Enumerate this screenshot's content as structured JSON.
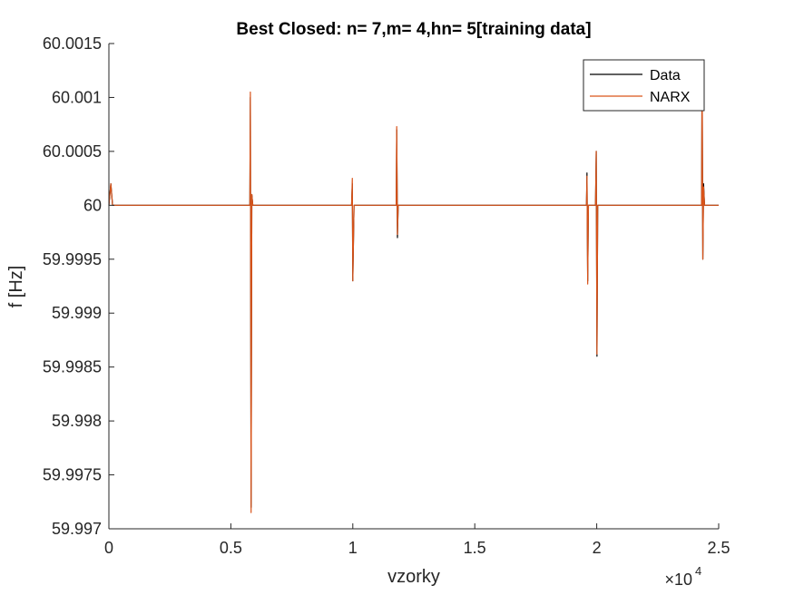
{
  "chart_data": {
    "type": "line",
    "title": "Best Closed: n= 7,m= 4,hn= 5[training data]",
    "xlabel": "vzorky",
    "ylabel": "f [Hz]",
    "xlim": [
      0,
      25000
    ],
    "ylim": [
      59.997,
      60.0015
    ],
    "x_exponent_label": "×10",
    "x_exponent_power": "4",
    "x_ticks": [
      0,
      5000,
      10000,
      15000,
      20000,
      25000
    ],
    "x_tick_labels": [
      "0",
      "0.5",
      "1",
      "1.5",
      "2",
      "2.5"
    ],
    "y_ticks": [
      59.997,
      59.9975,
      59.998,
      59.9985,
      59.999,
      59.9995,
      60,
      60.0005,
      60.001,
      60.0015
    ],
    "y_tick_labels": [
      "59.997",
      "59.9975",
      "59.998",
      "59.9985",
      "59.999",
      "59.9995",
      "60",
      "60.0005",
      "60.001",
      "60.0015"
    ],
    "legend": {
      "location": "top-right",
      "entries": [
        "Data",
        "NARX"
      ]
    },
    "series": [
      {
        "name": "Data",
        "color": "#000000",
        "x": [
          0,
          80,
          150,
          5780,
          5800,
          5830,
          5860,
          5900,
          6100,
          9950,
          9980,
          10000,
          10050,
          11780,
          11800,
          11830,
          11860,
          19580,
          19600,
          19630,
          19660,
          19950,
          19980,
          20010,
          20040,
          20300,
          24300,
          24320,
          24350,
          24380,
          24420,
          25000
        ],
        "y": [
          60,
          60.0002,
          60,
          60,
          60.001,
          59.9972,
          60.0001,
          60,
          60,
          60,
          60.0002,
          59.9993,
          60,
          60,
          60.0007,
          59.9997,
          60,
          60,
          60.0003,
          59.9993,
          60,
          60,
          60.0005,
          59.9986,
          60,
          60,
          60,
          60.0013,
          59.9995,
          60.0002,
          60,
          60
        ]
      },
      {
        "name": "NARX",
        "color": "#D95319",
        "x": [
          0,
          80,
          150,
          5780,
          5800,
          5830,
          5860,
          5900,
          6100,
          9950,
          9980,
          10000,
          10050,
          11780,
          11800,
          11830,
          11860,
          19580,
          19600,
          19630,
          19660,
          19950,
          19980,
          20010,
          20040,
          20300,
          24300,
          24320,
          24350,
          24380,
          24420,
          25000
        ],
        "y": [
          60,
          60.0002,
          60,
          60,
          60.00105,
          59.99715,
          60.0001,
          60,
          60,
          60,
          60.00025,
          59.9993,
          60,
          60,
          60.00073,
          59.99973,
          60,
          60,
          60.00027,
          59.99927,
          60,
          60,
          60.0005,
          59.99862,
          60,
          60,
          60,
          60.0013,
          59.9995,
          60.00017,
          60,
          60
        ]
      }
    ]
  }
}
